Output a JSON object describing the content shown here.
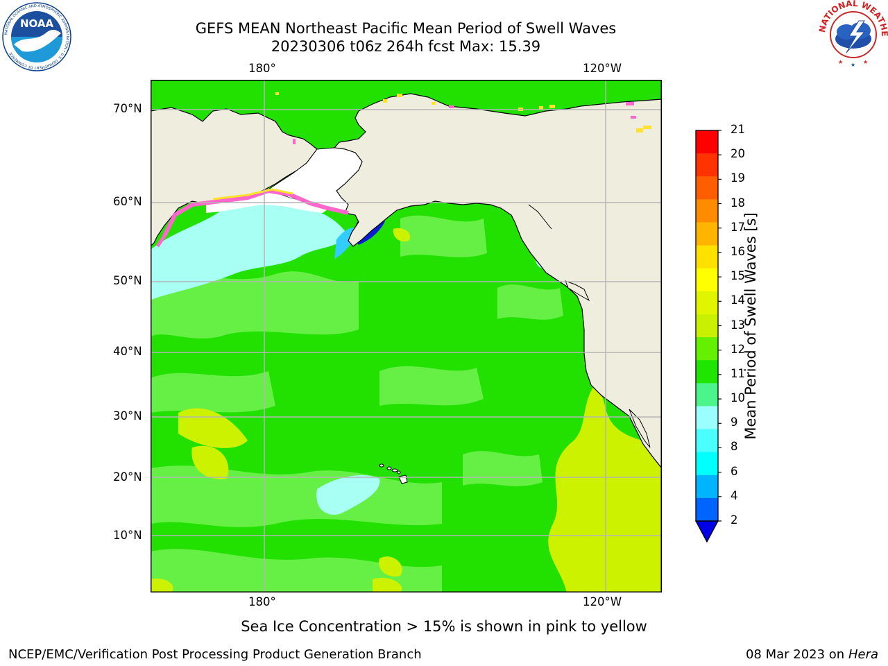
{
  "header": {
    "title_line1": "GEFS MEAN Northeast Pacific Mean Period of Swell Waves",
    "title_line2": "20230306 t06z 264h fcst   Max: 15.39"
  },
  "logos": {
    "noaa_text": "NOAA",
    "noaa_ring": "NATIONAL OCEANIC AND ATMOSPHERIC ADMINISTRATION • U.S. DEPARTMENT OF COMMERCE",
    "nws_ring": "NATIONAL WEATHER SERVICE"
  },
  "map": {
    "top_lon_labels": [
      "180°",
      "120°W"
    ],
    "bottom_lon_labels": [
      "180°",
      "120°W"
    ],
    "lat_labels": [
      "70°N",
      "60°N",
      "50°N",
      "40°N",
      "30°N",
      "20°N",
      "10°N"
    ],
    "colors": {
      "land": "#efedde",
      "ocean_green": "#22e000",
      "ocean_light_green": "#66ef44",
      "ocean_yellowgreen": "#ccf200",
      "ocean_aqua": "#a8fff4",
      "ice_pink": "#ff66cc",
      "ice_yellow": "#ffe22a",
      "dark_blue": "#0a1ed8",
      "grid": "#b5b5b5"
    }
  },
  "colorbar": {
    "title": "Mean Period of Swell Waves [s]",
    "ticks": [
      "21",
      "20",
      "19",
      "18",
      "17",
      "16",
      "15",
      "14",
      "13",
      "12",
      "11",
      "10",
      "9",
      "8",
      "6",
      "4",
      "2"
    ],
    "colors_top_to_bottom": [
      "#ff0000",
      "#ff3300",
      "#ff5e00",
      "#ff8c00",
      "#ffb400",
      "#ffe100",
      "#ffff00",
      "#e1f500",
      "#c8f000",
      "#64f000",
      "#1ee600",
      "#4bf58c",
      "#9bffff",
      "#4bffff",
      "#00ffff",
      "#00b4ff",
      "#0064ff"
    ],
    "extend_color": "#0000e6"
  },
  "footer": {
    "note": "Sea Ice Concentration > 15% is shown in pink to yellow",
    "left": "NCEP/EMC/Verification Post Processing Product Generation Branch",
    "right_date": "08 Mar 2023 on",
    "right_host": "Hera"
  }
}
